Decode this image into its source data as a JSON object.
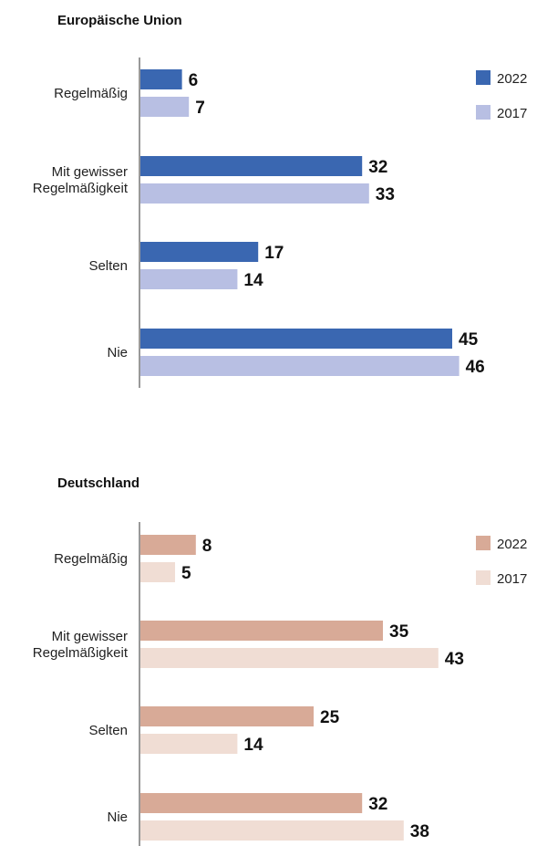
{
  "chart_data": [
    {
      "type": "bar",
      "orientation": "horizontal",
      "title": "Europäische Union",
      "categories": [
        "Regelmäßig",
        "Mit gewisser Regelmäßigkeit",
        "Selten",
        "Nie"
      ],
      "category_lines": [
        [
          "Regelmäßig"
        ],
        [
          "Mit gewisser",
          "Regelmäßigkeit"
        ],
        [
          "Selten"
        ],
        [
          "Nie"
        ]
      ],
      "series": [
        {
          "name": "2022",
          "color": "#3a67b1",
          "values": [
            6,
            32,
            17,
            45
          ]
        },
        {
          "name": "2017",
          "color": "#b8bfe3",
          "values": [
            7,
            33,
            14,
            46
          ]
        }
      ],
      "legend_position": "top-right",
      "grid": false,
      "xlim": [
        0,
        50
      ]
    },
    {
      "type": "bar",
      "orientation": "horizontal",
      "title": "Deutschland",
      "categories": [
        "Regelmäßig",
        "Mit gewisser Regelmäßigkeit",
        "Selten",
        "Nie"
      ],
      "category_lines": [
        [
          "Regelmäßig"
        ],
        [
          "Mit gewisser",
          "Regelmäßigkeit"
        ],
        [
          "Selten"
        ],
        [
          "Nie"
        ]
      ],
      "series": [
        {
          "name": "2022",
          "color": "#d8aa97",
          "values": [
            8,
            35,
            25,
            32
          ]
        },
        {
          "name": "2017",
          "color": "#f0ddd4",
          "values": [
            5,
            43,
            14,
            38
          ]
        }
      ],
      "legend_position": "top-right",
      "grid": false,
      "xlim": [
        0,
        50
      ]
    }
  ]
}
